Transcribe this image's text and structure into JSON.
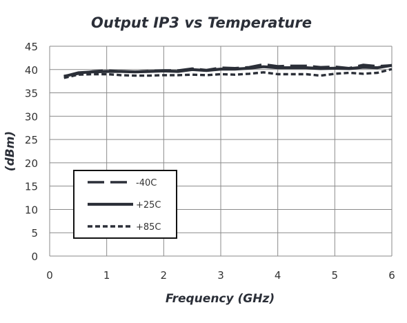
{
  "chart_data": {
    "type": "line",
    "title": "Output IP3 vs Temperature",
    "xlabel": "Frequency (GHz)",
    "ylabel": "(dBm)",
    "xlim": [
      0,
      6
    ],
    "ylim": [
      0,
      45
    ],
    "xticks": [
      0,
      1,
      2,
      3,
      4,
      5,
      6
    ],
    "yticks": [
      0,
      5,
      10,
      15,
      20,
      25,
      30,
      35,
      40,
      45
    ],
    "grid": true,
    "legend_position": "lower-left",
    "series": [
      {
        "name": "-40C",
        "style": "long-dash",
        "color": "#2b2f38",
        "x": [
          0.25,
          0.5,
          0.75,
          1.0,
          1.25,
          1.5,
          1.75,
          2.0,
          2.25,
          2.5,
          2.75,
          3.0,
          3.25,
          3.5,
          3.75,
          4.0,
          4.25,
          4.5,
          4.75,
          5.0,
          5.25,
          5.5,
          5.75,
          6.0
        ],
        "values": [
          38.6,
          39.1,
          39.6,
          39.8,
          39.6,
          39.5,
          39.7,
          39.8,
          39.8,
          40.2,
          39.9,
          40.4,
          40.3,
          40.5,
          41.1,
          40.7,
          40.8,
          40.8,
          40.5,
          40.6,
          40.3,
          41.0,
          40.7,
          40.9
        ]
      },
      {
        "name": "+25C",
        "style": "solid",
        "color": "#2b2f38",
        "x": [
          0.25,
          0.5,
          0.75,
          1.0,
          1.25,
          1.5,
          1.75,
          2.0,
          2.25,
          2.5,
          2.75,
          3.0,
          3.25,
          3.5,
          3.75,
          4.0,
          4.25,
          4.5,
          4.75,
          5.0,
          5.25,
          5.5,
          5.75,
          6.0
        ],
        "values": [
          38.5,
          39.3,
          39.5,
          39.6,
          39.6,
          39.5,
          39.6,
          39.7,
          39.6,
          40.0,
          39.8,
          40.1,
          40.1,
          40.3,
          40.6,
          40.4,
          40.4,
          40.4,
          40.2,
          40.3,
          40.2,
          40.5,
          40.4,
          40.9
        ]
      },
      {
        "name": "+85C",
        "style": "short-dash",
        "color": "#2b2f38",
        "x": [
          0.25,
          0.5,
          0.75,
          1.0,
          1.25,
          1.5,
          1.75,
          2.0,
          2.25,
          2.5,
          2.75,
          3.0,
          3.25,
          3.5,
          3.75,
          4.0,
          4.25,
          4.5,
          4.75,
          5.0,
          5.25,
          5.5,
          5.75,
          6.0
        ],
        "values": [
          38.2,
          38.9,
          39.0,
          39.0,
          38.8,
          38.7,
          38.7,
          38.8,
          38.8,
          38.9,
          38.8,
          39.0,
          38.9,
          39.1,
          39.4,
          39.0,
          39.0,
          39.0,
          38.7,
          39.1,
          39.3,
          39.1,
          39.3,
          40.1
        ]
      }
    ]
  }
}
